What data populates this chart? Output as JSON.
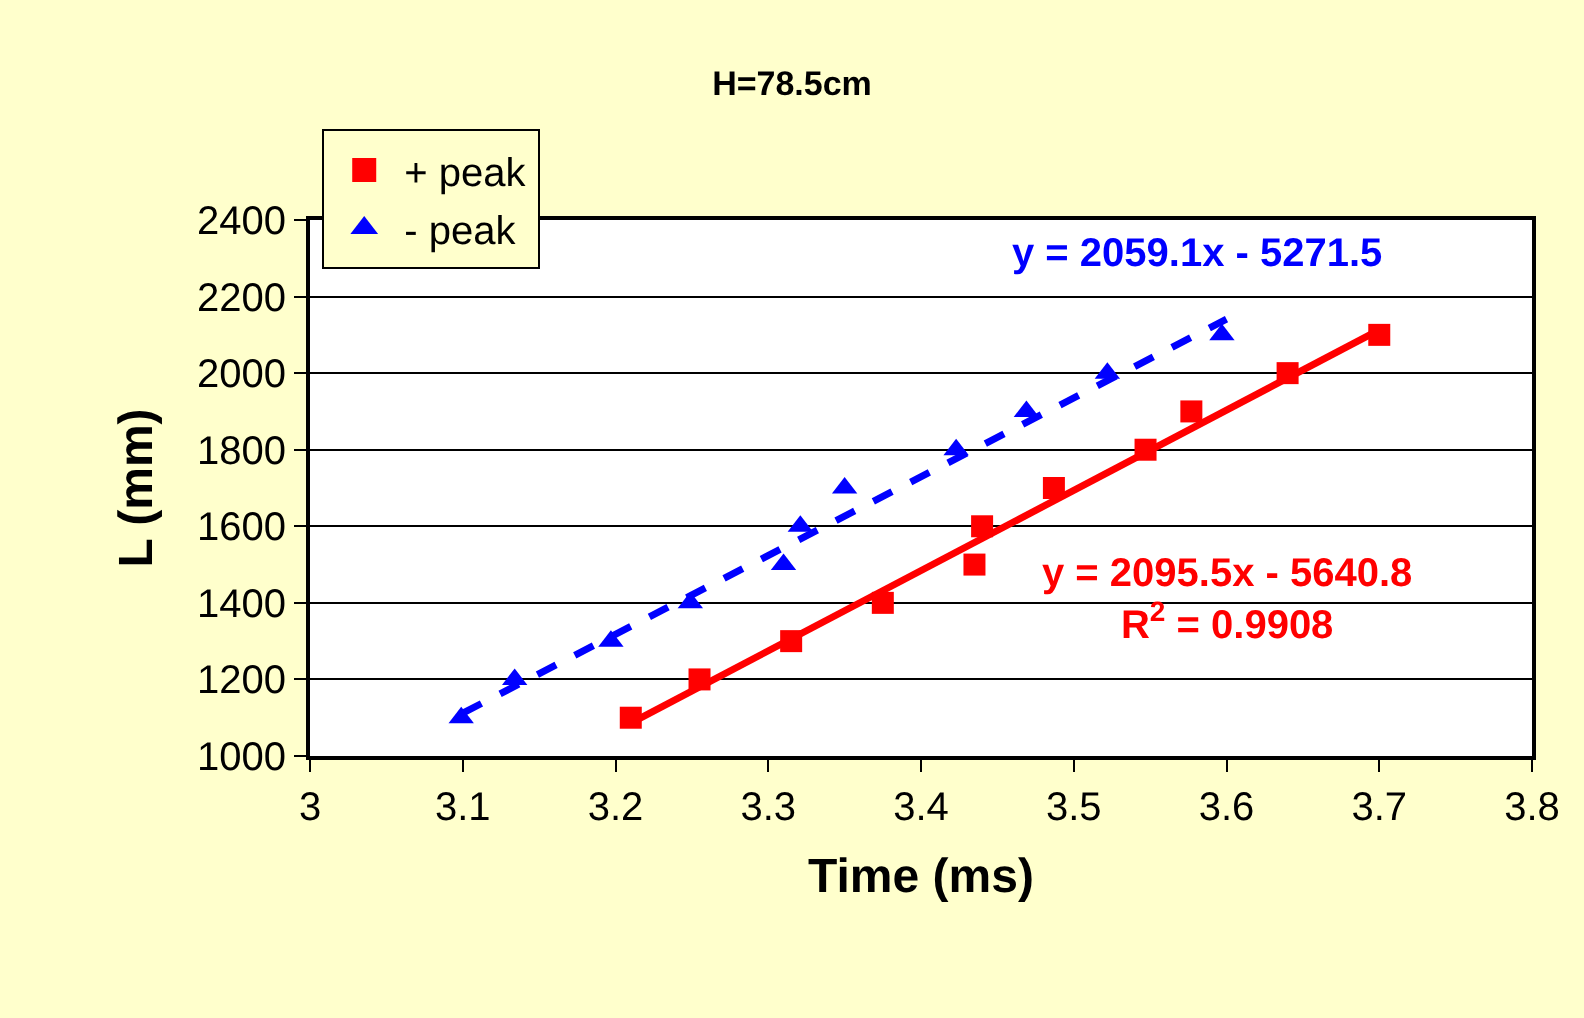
{
  "chart_data": {
    "type": "scatter",
    "title": "H=78.5cm",
    "xlabel": "Time (ms)",
    "ylabel": "L (mm)",
    "xlim": [
      3,
      3.8
    ],
    "xticks": [
      3,
      3.1,
      3.2,
      3.3,
      3.4,
      3.5,
      3.6,
      3.7,
      3.8
    ],
    "ylim": [
      1000,
      2400
    ],
    "yticks": [
      1000,
      1200,
      1400,
      1600,
      1800,
      2000,
      2200,
      2400
    ],
    "grid": "y",
    "legend": "top left",
    "series": [
      {
        "name": "+ peak",
        "color": "#ff0000",
        "marker": "square",
        "x": [
          3.21,
          3.255,
          3.315,
          3.375,
          3.435,
          3.44,
          3.487,
          3.547,
          3.577,
          3.64,
          3.7
        ],
        "values": [
          1100,
          1200,
          1300,
          1400,
          1500,
          1600,
          1700,
          1800,
          1900,
          2000,
          2100
        ]
      },
      {
        "name": "- peak",
        "color": "#0000ff",
        "marker": "triangle",
        "x": [
          3.099,
          3.134,
          3.197,
          3.249,
          3.31,
          3.321,
          3.35,
          3.423,
          3.469,
          3.522,
          3.597
        ],
        "values": [
          1100,
          1200,
          1300,
          1400,
          1500,
          1600,
          1700,
          1800,
          1900,
          2000,
          2100
        ]
      },
      {
        "type": "line",
        "color": "#ff0000",
        "line_style": "solid",
        "marker": "none",
        "x": [
          3.21,
          3.7
        ],
        "values": [
          1086,
          2113
        ]
      },
      {
        "type": "line",
        "color": "#0000ff",
        "line_style": "dashed",
        "marker": "none",
        "x": [
          3.1,
          3.6
        ],
        "values": [
          1112,
          2141
        ]
      }
    ],
    "annotations": [
      "y = 2059.1x - 5271.5",
      "y = 2095.5x - 5640.8\nR$^{2}$ = 0.9908"
    ]
  }
}
